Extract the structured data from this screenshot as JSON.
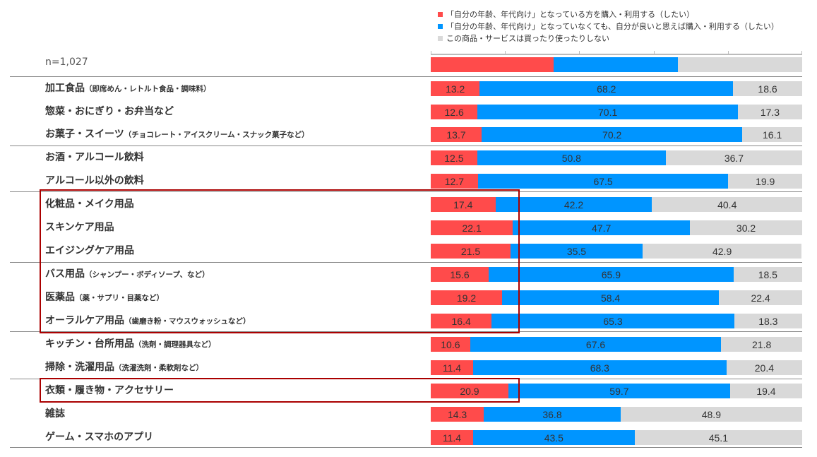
{
  "chart_data": {
    "type": "bar",
    "stacked": true,
    "orientation": "horizontal",
    "n_label": "n=1,027",
    "xlim": [
      0,
      100
    ],
    "legend": [
      {
        "label": "「自分の年齢、年代向け」となっている方を購入・利用する（したい）",
        "color": "#ff4b4b"
      },
      {
        "label": "「自分の年齢、年代向け」となっていなくても、自分が良いと思えば購入・利用する（したい）",
        "color": "#0095ff"
      },
      {
        "label": "この商品・サービスは買ったり使ったりしない",
        "color": "#d9d9d9"
      }
    ],
    "categories": [
      {
        "main": "加工食品",
        "sub": "（即席めん・レトルト食品・調味料）",
        "values": [
          13.2,
          68.2,
          18.6
        ]
      },
      {
        "main": "惣菜・おにぎり・お弁当など",
        "sub": "",
        "values": [
          12.6,
          70.1,
          17.3
        ]
      },
      {
        "main": "お菓子・スイーツ",
        "sub": "（チョコレート・アイスクリーム・スナック菓子など）",
        "values": [
          13.7,
          70.2,
          16.1
        ]
      },
      {
        "main": "お酒・アルコール飲料",
        "sub": "",
        "values": [
          12.5,
          50.8,
          36.7
        ]
      },
      {
        "main": "アルコール以外の飲料",
        "sub": "",
        "values": [
          12.7,
          67.5,
          19.9
        ]
      },
      {
        "main": "化粧品・メイク用品",
        "sub": "",
        "values": [
          17.4,
          42.2,
          40.4
        ]
      },
      {
        "main": "スキンケア用品",
        "sub": "",
        "values": [
          22.1,
          47.7,
          30.2
        ]
      },
      {
        "main": "エイジングケア用品",
        "sub": "",
        "values": [
          21.5,
          35.5,
          42.9
        ]
      },
      {
        "main": "バス用品",
        "sub": "（シャンプー・ボディソープ、など）",
        "values": [
          15.6,
          65.9,
          18.5
        ]
      },
      {
        "main": "医薬品",
        "sub": "（薬・サプリ・目薬など）",
        "values": [
          19.2,
          58.4,
          22.4
        ]
      },
      {
        "main": "オーラルケア用品",
        "sub": "（歯磨き粉・マウスウォッシュなど）",
        "values": [
          16.4,
          65.3,
          18.3
        ]
      },
      {
        "main": "キッチン・台所用品",
        "sub": "（洗剤・調理器具など）",
        "values": [
          10.6,
          67.6,
          21.8
        ]
      },
      {
        "main": "掃除・洗濯用品",
        "sub": "（洗濯洗剤・柔軟剤など）",
        "values": [
          11.4,
          68.3,
          20.4
        ]
      },
      {
        "main": "衣類・履き物・アクセサリー",
        "sub": "",
        "values": [
          20.9,
          59.7,
          19.4
        ]
      },
      {
        "main": "雑誌",
        "sub": "",
        "values": [
          14.3,
          36.8,
          48.9
        ]
      },
      {
        "main": "ゲーム・スマホのアプリ",
        "sub": "",
        "values": [
          11.4,
          43.5,
          45.1
        ]
      }
    ]
  }
}
